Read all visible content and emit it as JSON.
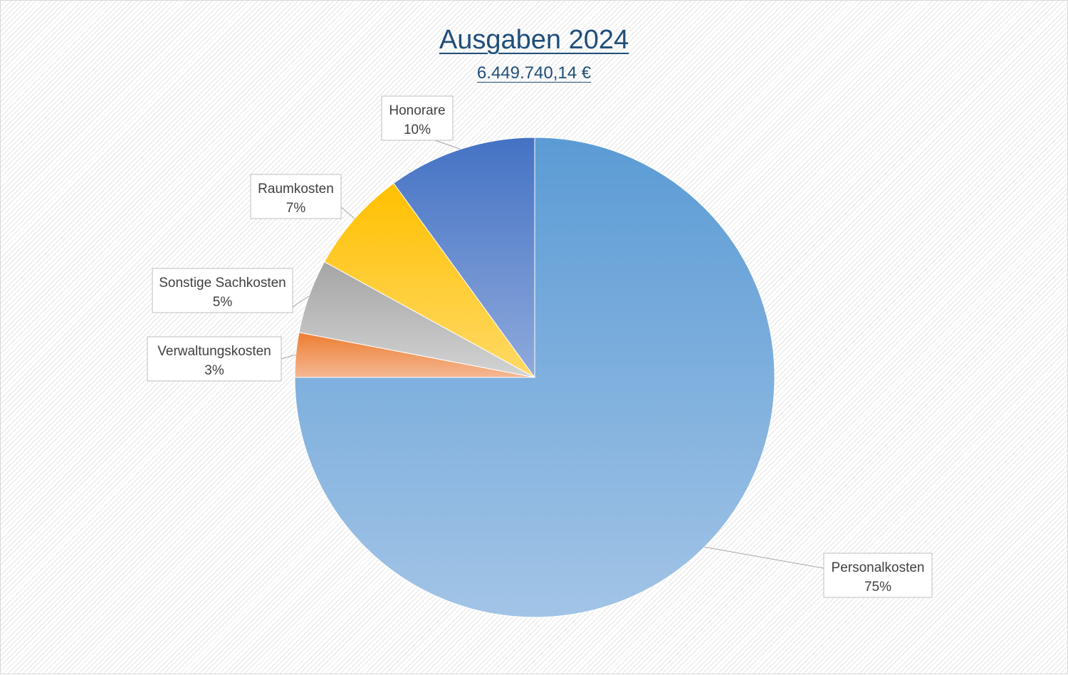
{
  "chart_data": {
    "type": "pie",
    "title": "Ausgaben 2024",
    "subtitle": "6.449.740,14 €",
    "slices": [
      {
        "label": "Personalkosten",
        "value": 75,
        "display": "75%",
        "color_top": "#5b9bd5",
        "color_bottom": "#a2c4e6"
      },
      {
        "label": "Verwaltungskosten",
        "value": 3,
        "display": "3%",
        "color_top": "#ed7d31",
        "color_bottom": "#f4b894"
      },
      {
        "label": "Sonstige Sachkosten",
        "value": 5,
        "display": "5%",
        "color_top": "#a5a5a5",
        "color_bottom": "#d3d3d3"
      },
      {
        "label": "Raumkosten",
        "value": 7,
        "display": "7%",
        "color_top": "#ffc000",
        "color_bottom": "#ffd966"
      },
      {
        "label": "Honorare",
        "value": 10,
        "display": "10%",
        "color_top": "#4472c4",
        "color_bottom": "#8faadc"
      }
    ]
  }
}
